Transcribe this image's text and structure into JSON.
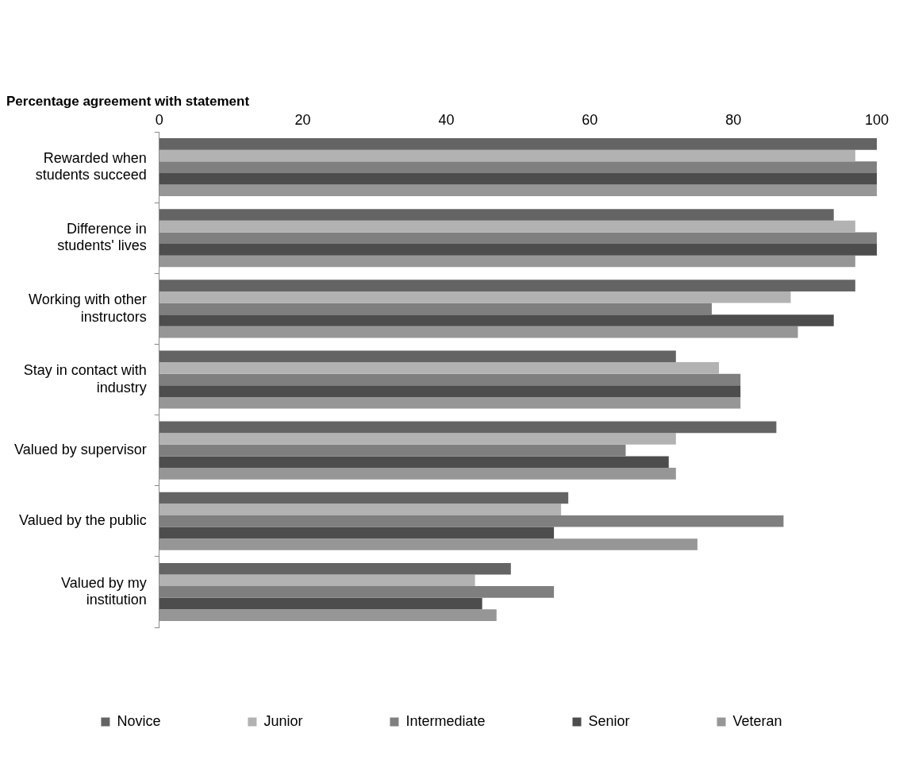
{
  "chart_data": {
    "type": "bar",
    "orientation": "horizontal",
    "title": "Percentage agreement with statement",
    "categories": [
      "Rewarded when students succeed",
      "Difference in students' lives",
      "Working with other instructors",
      "Stay in contact with industry",
      "Valued by supervisor",
      "Valued by the public",
      "Valued by my institution"
    ],
    "series": [
      {
        "name": "Novice",
        "color": "#646464",
        "values": [
          100,
          94,
          97,
          72,
          86,
          57,
          49
        ]
      },
      {
        "name": "Junior",
        "color": "#b2b2b2",
        "values": [
          97,
          97,
          88,
          78,
          72,
          56,
          44
        ]
      },
      {
        "name": "Intermediate",
        "color": "#7f7f7f",
        "values": [
          100,
          100,
          77,
          81,
          65,
          87,
          55
        ]
      },
      {
        "name": "Senior",
        "color": "#4d4d4d",
        "values": [
          100,
          100,
          94,
          81,
          71,
          55,
          45
        ]
      },
      {
        "name": "Veteran",
        "color": "#969696",
        "values": [
          100,
          97,
          89,
          81,
          72,
          75,
          47
        ]
      }
    ],
    "xlim": [
      0,
      100
    ],
    "xticks": [
      0,
      20,
      40,
      60,
      80,
      100
    ],
    "grid": false,
    "legend": "bottom"
  }
}
